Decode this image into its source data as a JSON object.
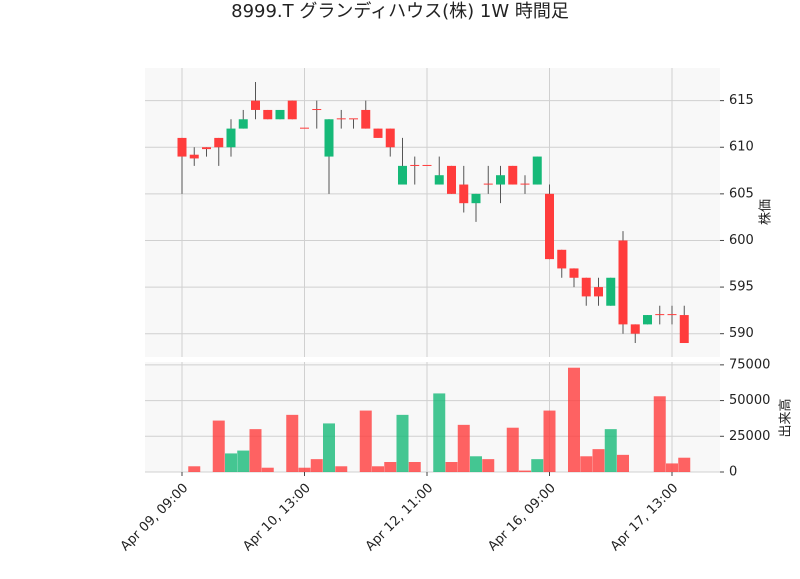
{
  "chart_data": {
    "type": "candlestick",
    "title": "8999.T グランディハウス(株) 1W 時間足",
    "x": [
      "Apr 09, 09:00",
      null,
      null,
      null,
      null,
      null,
      null,
      null,
      null,
      null,
      "Apr 10, 13:00",
      null,
      null,
      null,
      null,
      null,
      null,
      null,
      null,
      null,
      "Apr 12, 11:00",
      null,
      null,
      null,
      null,
      null,
      null,
      null,
      null,
      null,
      "Apr 16, 09:00",
      null,
      null,
      null,
      null,
      null,
      null,
      null,
      null,
      null,
      "Apr 17, 13:00",
      null
    ],
    "open": [
      611,
      609.2,
      610,
      611,
      610,
      612,
      615,
      614,
      613,
      615,
      612.1,
      614.1,
      609,
      613.1,
      613.1,
      614,
      612,
      612,
      606,
      608.1,
      608.1,
      606,
      608,
      606,
      604,
      606.1,
      606,
      608,
      606.1,
      606,
      605,
      599,
      597,
      596,
      595,
      593,
      600,
      591,
      591,
      592.1,
      592.1,
      592
    ],
    "high": [
      611,
      610,
      610,
      611,
      613,
      614,
      617,
      614,
      614,
      615,
      612,
      615,
      613,
      614,
      613,
      615,
      612,
      612,
      611,
      609,
      608,
      609,
      608,
      608,
      605,
      608,
      608,
      608,
      607,
      609,
      606,
      599,
      597,
      596,
      596,
      596,
      601,
      591,
      592,
      593,
      593,
      593
    ],
    "low": [
      605,
      608,
      609,
      608,
      609,
      612,
      613,
      613,
      613,
      613,
      612,
      612,
      605,
      612,
      612,
      612,
      611,
      609,
      606,
      606,
      608,
      606,
      605,
      603,
      602,
      605,
      604,
      606,
      605,
      606,
      598,
      596,
      595,
      593,
      593,
      593,
      590,
      589,
      591,
      591,
      591,
      589
    ],
    "close": [
      609,
      608.8,
      609.8,
      610,
      612,
      613,
      614,
      613,
      614,
      613,
      612,
      614,
      613,
      613,
      613,
      612,
      611,
      610,
      608,
      608,
      608,
      607,
      605,
      604,
      605,
      606,
      607,
      606,
      606,
      609,
      598,
      597,
      596,
      594,
      594,
      596,
      591,
      590,
      592,
      592,
      592,
      589
    ],
    "volume": [
      0,
      4000,
      0,
      36000,
      13000,
      15000,
      30000,
      3000,
      0,
      40000,
      3000,
      9000,
      34000,
      4000,
      0,
      43000,
      4000,
      7000,
      40000,
      7000,
      0,
      55000,
      7000,
      33000,
      11000,
      9000,
      0,
      31000,
      1000,
      9000,
      43000,
      0,
      73000,
      11000,
      16000,
      30000,
      12000,
      0,
      0,
      53000,
      6000,
      10000
    ],
    "up_color": "#16b978",
    "down_color": "#ff3c3c",
    "ylabel": "株価",
    "ylim": [
      587.5,
      618.5
    ],
    "yticks": [
      590,
      595,
      600,
      605,
      610,
      615
    ],
    "volume_ylabel": "出来高",
    "volume_ylim": [
      0,
      77000
    ],
    "volume_yticks": [
      0,
      25000,
      50000,
      75000
    ],
    "grid": true
  }
}
